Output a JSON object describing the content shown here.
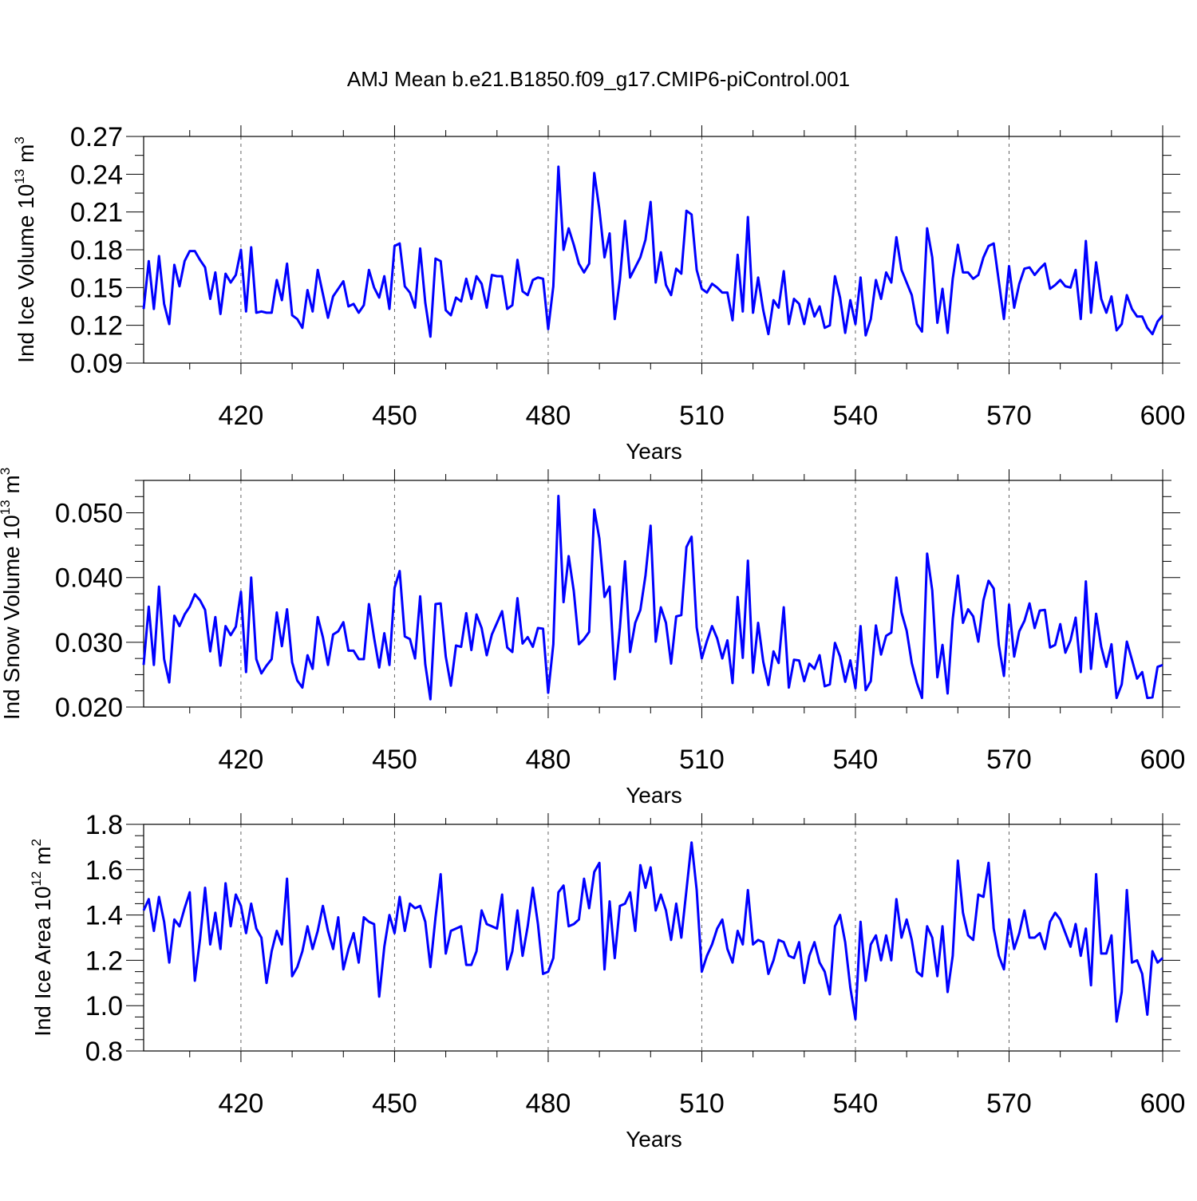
{
  "figure": {
    "title": "AMJ Mean b.e21.B1850.f09_g17.CMIP6-piControl.001"
  },
  "style": {
    "line_color": "#0000ff",
    "grid_color": "#000000",
    "axis_color": "#000000"
  },
  "chart_data": [
    {
      "type": "line",
      "title": "AMJ Mean b.e21.B1850.f09_g17.CMIP6-piControl.001",
      "xlabel": "Years",
      "ylabel": {
        "text": "Ind Ice Volume 10",
        "exp": "13",
        "unit": " m",
        "unit_exp": "3"
      },
      "xlim": [
        401,
        600
      ],
      "ylim": [
        0.09,
        0.27
      ],
      "xticks": [
        "420",
        "450",
        "480",
        "510",
        "540",
        "570",
        "600"
      ],
      "xtick_values": [
        420,
        450,
        480,
        510,
        540,
        570,
        600
      ],
      "yticks": [
        "0.09",
        "0.12",
        "0.15",
        "0.18",
        "0.21",
        "0.24",
        "0.27"
      ],
      "ytick_values": [
        0.09,
        0.12,
        0.15,
        0.18,
        0.21,
        0.24,
        0.27
      ],
      "grid": "vertical dashed at major x ticks",
      "series": [
        {
          "x_start": 401,
          "values": [
            0.133,
            0.171,
            0.133,
            0.175,
            0.137,
            0.121,
            0.168,
            0.151,
            0.171,
            0.179,
            0.179,
            0.172,
            0.166,
            0.141,
            0.162,
            0.129,
            0.161,
            0.154,
            0.16,
            0.18,
            0.131,
            0.182,
            0.13,
            0.131,
            0.13,
            0.13,
            0.156,
            0.14,
            0.169,
            0.128,
            0.125,
            0.118,
            0.148,
            0.131,
            0.164,
            0.145,
            0.126,
            0.143,
            0.149,
            0.155,
            0.135,
            0.137,
            0.13,
            0.136,
            0.164,
            0.15,
            0.142,
            0.159,
            0.133,
            0.183,
            0.185,
            0.151,
            0.146,
            0.134,
            0.181,
            0.138,
            0.111,
            0.173,
            0.171,
            0.132,
            0.128,
            0.142,
            0.139,
            0.157,
            0.141,
            0.159,
            0.153,
            0.134,
            0.16,
            0.159,
            0.159,
            0.133,
            0.136,
            0.172,
            0.147,
            0.144,
            0.156,
            0.158,
            0.157,
            0.117,
            0.151,
            0.246,
            0.18,
            0.197,
            0.184,
            0.169,
            0.162,
            0.169,
            0.241,
            0.212,
            0.174,
            0.193,
            0.125,
            0.156,
            0.203,
            0.158,
            0.166,
            0.174,
            0.188,
            0.218,
            0.154,
            0.178,
            0.152,
            0.144,
            0.165,
            0.161,
            0.211,
            0.208,
            0.164,
            0.149,
            0.146,
            0.153,
            0.15,
            0.146,
            0.146,
            0.124,
            0.176,
            0.131,
            0.206,
            0.13,
            0.158,
            0.132,
            0.113,
            0.14,
            0.134,
            0.163,
            0.121,
            0.141,
            0.137,
            0.121,
            0.141,
            0.127,
            0.135,
            0.118,
            0.12,
            0.159,
            0.142,
            0.114,
            0.14,
            0.121,
            0.158,
            0.112,
            0.125,
            0.156,
            0.141,
            0.162,
            0.154,
            0.19,
            0.164,
            0.154,
            0.144,
            0.121,
            0.115,
            0.197,
            0.174,
            0.122,
            0.149,
            0.114,
            0.157,
            0.184,
            0.162,
            0.162,
            0.157,
            0.16,
            0.174,
            0.183,
            0.185,
            0.155,
            0.125,
            0.167,
            0.134,
            0.153,
            0.165,
            0.166,
            0.16,
            0.165,
            0.169,
            0.149,
            0.152,
            0.156,
            0.151,
            0.15,
            0.164,
            0.125,
            0.187,
            0.13,
            0.17,
            0.141,
            0.13,
            0.143,
            0.116,
            0.121,
            0.144,
            0.133,
            0.127,
            0.127,
            0.118,
            0.113,
            0.123,
            0.128
          ]
        }
      ]
    },
    {
      "type": "line",
      "xlabel": "Years",
      "ylabel": {
        "text": "Ind Snow Volume 10",
        "exp": "13",
        "unit": " m",
        "unit_exp": "3"
      },
      "xlim": [
        401,
        600
      ],
      "ylim": [
        0.02,
        0.055
      ],
      "xticks": [
        "420",
        "450",
        "480",
        "510",
        "540",
        "570",
        "600"
      ],
      "xtick_values": [
        420,
        450,
        480,
        510,
        540,
        570,
        600
      ],
      "yticks": [
        "0.020",
        "0.030",
        "0.040",
        "0.050"
      ],
      "ytick_values": [
        0.02,
        0.03,
        0.04,
        0.05
      ],
      "grid": "vertical dashed at major x ticks",
      "series": [
        {
          "x_start": 401,
          "values": [
            0.0265,
            0.0355,
            0.0265,
            0.0386,
            0.0274,
            0.0238,
            0.0341,
            0.0325,
            0.0343,
            0.0355,
            0.0374,
            0.0365,
            0.035,
            0.0286,
            0.0339,
            0.0264,
            0.0325,
            0.0311,
            0.0324,
            0.0378,
            0.0254,
            0.04,
            0.0274,
            0.0252,
            0.0264,
            0.0274,
            0.0346,
            0.0294,
            0.0351,
            0.0269,
            0.0241,
            0.023,
            0.028,
            0.0259,
            0.0339,
            0.0308,
            0.0265,
            0.0312,
            0.0317,
            0.0331,
            0.0287,
            0.0287,
            0.0274,
            0.0274,
            0.0359,
            0.0307,
            0.0261,
            0.0314,
            0.0265,
            0.0384,
            0.041,
            0.0309,
            0.0305,
            0.0275,
            0.0371,
            0.0266,
            0.0212,
            0.0359,
            0.036,
            0.0278,
            0.0233,
            0.0295,
            0.0293,
            0.0345,
            0.0288,
            0.0343,
            0.0322,
            0.028,
            0.0312,
            0.033,
            0.0348,
            0.0292,
            0.0285,
            0.0368,
            0.0298,
            0.0308,
            0.0293,
            0.0322,
            0.0321,
            0.0222,
            0.0297,
            0.0526,
            0.0362,
            0.0433,
            0.0379,
            0.0297,
            0.0305,
            0.0316,
            0.0505,
            0.046,
            0.037,
            0.0386,
            0.0243,
            0.0322,
            0.0425,
            0.0285,
            0.033,
            0.035,
            0.0403,
            0.048,
            0.0301,
            0.0354,
            0.033,
            0.0267,
            0.034,
            0.0342,
            0.0447,
            0.0463,
            0.0323,
            0.0275,
            0.0302,
            0.0325,
            0.0306,
            0.0275,
            0.0303,
            0.0237,
            0.037,
            0.0276,
            0.0426,
            0.0253,
            0.033,
            0.027,
            0.0234,
            0.0286,
            0.0268,
            0.0354,
            0.023,
            0.0273,
            0.0272,
            0.024,
            0.0267,
            0.0259,
            0.028,
            0.0232,
            0.0235,
            0.0299,
            0.0278,
            0.0239,
            0.0272,
            0.0229,
            0.0325,
            0.0226,
            0.024,
            0.0326,
            0.0281,
            0.031,
            0.0315,
            0.04,
            0.0346,
            0.0318,
            0.0268,
            0.0237,
            0.0214,
            0.0437,
            0.038,
            0.0246,
            0.0296,
            0.0221,
            0.0336,
            0.0403,
            0.033,
            0.0351,
            0.034,
            0.0301,
            0.0365,
            0.0395,
            0.0383,
            0.0296,
            0.0248,
            0.0358,
            0.0278,
            0.0317,
            0.0333,
            0.036,
            0.0322,
            0.0349,
            0.035,
            0.0292,
            0.0296,
            0.0328,
            0.0284,
            0.0303,
            0.0338,
            0.0254,
            0.0394,
            0.0259,
            0.0344,
            0.0293,
            0.0262,
            0.0297,
            0.0214,
            0.0235,
            0.0301,
            0.0273,
            0.0244,
            0.0254,
            0.0214,
            0.0215,
            0.0262,
            0.0265
          ]
        }
      ]
    },
    {
      "type": "line",
      "xlabel": "Years",
      "ylabel": {
        "text": "Ind Ice Area 10",
        "exp": "12",
        "unit": " m",
        "unit_exp": "2"
      },
      "xlim": [
        401,
        600
      ],
      "ylim": [
        0.8,
        1.8
      ],
      "xticks": [
        "420",
        "450",
        "480",
        "510",
        "540",
        "570",
        "600"
      ],
      "xtick_values": [
        420,
        450,
        480,
        510,
        540,
        570,
        600
      ],
      "yticks": [
        "0.8",
        "1.0",
        "1.2",
        "1.4",
        "1.6",
        "1.8"
      ],
      "ytick_values": [
        0.8,
        1.0,
        1.2,
        1.4,
        1.6,
        1.8
      ],
      "grid": "vertical dashed at major x ticks",
      "series": [
        {
          "x_start": 401,
          "values": [
            1.42,
            1.47,
            1.33,
            1.48,
            1.37,
            1.19,
            1.38,
            1.35,
            1.43,
            1.5,
            1.11,
            1.29,
            1.52,
            1.27,
            1.41,
            1.25,
            1.54,
            1.35,
            1.49,
            1.44,
            1.32,
            1.45,
            1.34,
            1.3,
            1.1,
            1.24,
            1.33,
            1.27,
            1.56,
            1.13,
            1.17,
            1.24,
            1.35,
            1.25,
            1.33,
            1.44,
            1.33,
            1.25,
            1.39,
            1.16,
            1.25,
            1.32,
            1.19,
            1.39,
            1.37,
            1.36,
            1.04,
            1.26,
            1.4,
            1.32,
            1.48,
            1.33,
            1.45,
            1.43,
            1.44,
            1.37,
            1.17,
            1.39,
            1.58,
            1.23,
            1.33,
            1.34,
            1.35,
            1.18,
            1.18,
            1.24,
            1.42,
            1.36,
            1.35,
            1.34,
            1.49,
            1.16,
            1.24,
            1.42,
            1.22,
            1.35,
            1.52,
            1.36,
            1.14,
            1.15,
            1.21,
            1.5,
            1.53,
            1.35,
            1.36,
            1.38,
            1.56,
            1.43,
            1.59,
            1.63,
            1.16,
            1.46,
            1.21,
            1.44,
            1.45,
            1.5,
            1.33,
            1.62,
            1.52,
            1.61,
            1.42,
            1.49,
            1.42,
            1.29,
            1.45,
            1.3,
            1.51,
            1.72,
            1.51,
            1.15,
            1.22,
            1.27,
            1.34,
            1.38,
            1.25,
            1.19,
            1.33,
            1.27,
            1.51,
            1.27,
            1.29,
            1.28,
            1.14,
            1.2,
            1.29,
            1.28,
            1.22,
            1.21,
            1.28,
            1.1,
            1.22,
            1.28,
            1.19,
            1.15,
            1.05,
            1.35,
            1.4,
            1.28,
            1.08,
            0.94,
            1.37,
            1.11,
            1.27,
            1.31,
            1.2,
            1.31,
            1.2,
            1.47,
            1.3,
            1.38,
            1.29,
            1.15,
            1.13,
            1.35,
            1.3,
            1.13,
            1.35,
            1.06,
            1.22,
            1.64,
            1.41,
            1.31,
            1.29,
            1.49,
            1.48,
            1.63,
            1.34,
            1.22,
            1.16,
            1.38,
            1.25,
            1.32,
            1.42,
            1.3,
            1.3,
            1.32,
            1.25,
            1.37,
            1.41,
            1.38,
            1.32,
            1.26,
            1.36,
            1.22,
            1.34,
            1.09,
            1.58,
            1.23,
            1.23,
            1.31,
            0.93,
            1.06,
            1.51,
            1.19,
            1.2,
            1.14,
            0.96,
            1.24,
            1.19,
            1.21
          ]
        }
      ]
    }
  ]
}
